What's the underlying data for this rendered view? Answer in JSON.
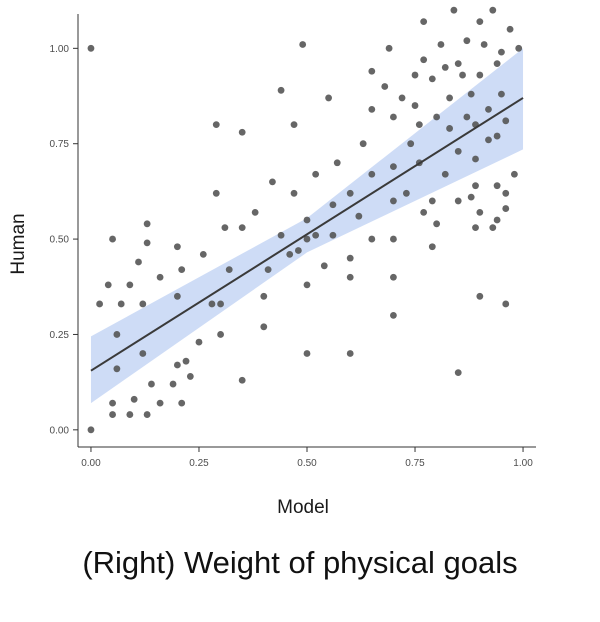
{
  "caption": "(Right) Weight of physical goals",
  "chart_data": {
    "type": "scatter",
    "xlabel": "Model",
    "ylabel": "Human",
    "xlim": [
      -0.03,
      1.03
    ],
    "ylim": [
      -0.045,
      1.09
    ],
    "xticks": [
      "0.00",
      "0.25",
      "0.50",
      "0.75",
      "1.00"
    ],
    "yticks": [
      "0.00",
      "0.25",
      "0.50",
      "0.75",
      "1.00"
    ],
    "grid": false,
    "fit_line": {
      "x": [
        0.0,
        1.0
      ],
      "y": [
        0.155,
        0.87
      ]
    },
    "confidence_band": {
      "x": [
        0.0,
        0.5,
        1.0
      ],
      "lower": [
        0.07,
        0.465,
        0.735
      ],
      "upper": [
        0.245,
        0.555,
        1.0
      ]
    },
    "colors": {
      "point": "#555555",
      "line": "#3a3a3a",
      "band": "#c5d6f4",
      "axis": "#333333"
    },
    "points": [
      [
        0.0,
        1.0
      ],
      [
        0.0,
        0.0
      ],
      [
        0.02,
        0.33
      ],
      [
        0.04,
        0.38
      ],
      [
        0.05,
        0.5
      ],
      [
        0.05,
        0.07
      ],
      [
        0.05,
        0.04
      ],
      [
        0.06,
        0.25
      ],
      [
        0.06,
        0.16
      ],
      [
        0.07,
        0.33
      ],
      [
        0.09,
        0.38
      ],
      [
        0.09,
        0.04
      ],
      [
        0.1,
        0.08
      ],
      [
        0.11,
        0.44
      ],
      [
        0.12,
        0.2
      ],
      [
        0.12,
        0.33
      ],
      [
        0.13,
        0.54
      ],
      [
        0.13,
        0.49
      ],
      [
        0.13,
        0.04
      ],
      [
        0.14,
        0.12
      ],
      [
        0.16,
        0.4
      ],
      [
        0.16,
        0.07
      ],
      [
        0.19,
        0.12
      ],
      [
        0.2,
        0.35
      ],
      [
        0.2,
        0.48
      ],
      [
        0.2,
        0.17
      ],
      [
        0.21,
        0.42
      ],
      [
        0.21,
        0.07
      ],
      [
        0.22,
        0.18
      ],
      [
        0.23,
        0.14
      ],
      [
        0.25,
        0.23
      ],
      [
        0.26,
        0.46
      ],
      [
        0.28,
        0.33
      ],
      [
        0.29,
        0.8
      ],
      [
        0.29,
        0.62
      ],
      [
        0.3,
        0.33
      ],
      [
        0.3,
        0.25
      ],
      [
        0.31,
        0.53
      ],
      [
        0.32,
        0.42
      ],
      [
        0.35,
        0.78
      ],
      [
        0.35,
        0.53
      ],
      [
        0.35,
        0.13
      ],
      [
        0.38,
        0.57
      ],
      [
        0.4,
        0.35
      ],
      [
        0.4,
        0.27
      ],
      [
        0.41,
        0.42
      ],
      [
        0.42,
        0.65
      ],
      [
        0.44,
        0.89
      ],
      [
        0.44,
        0.51
      ],
      [
        0.46,
        0.46
      ],
      [
        0.47,
        0.8
      ],
      [
        0.47,
        0.62
      ],
      [
        0.48,
        0.47
      ],
      [
        0.49,
        1.01
      ],
      [
        0.5,
        0.55
      ],
      [
        0.5,
        0.5
      ],
      [
        0.5,
        0.38
      ],
      [
        0.5,
        0.2
      ],
      [
        0.52,
        0.51
      ],
      [
        0.52,
        0.67
      ],
      [
        0.54,
        0.43
      ],
      [
        0.55,
        0.87
      ],
      [
        0.56,
        0.51
      ],
      [
        0.56,
        0.59
      ],
      [
        0.57,
        0.7
      ],
      [
        0.6,
        0.62
      ],
      [
        0.6,
        0.45
      ],
      [
        0.6,
        0.4
      ],
      [
        0.6,
        0.2
      ],
      [
        0.62,
        0.56
      ],
      [
        0.63,
        0.75
      ],
      [
        0.65,
        0.94
      ],
      [
        0.65,
        0.84
      ],
      [
        0.65,
        0.67
      ],
      [
        0.65,
        0.5
      ],
      [
        0.68,
        0.9
      ],
      [
        0.69,
        1.0
      ],
      [
        0.7,
        0.82
      ],
      [
        0.7,
        0.69
      ],
      [
        0.7,
        0.6
      ],
      [
        0.7,
        0.5
      ],
      [
        0.7,
        0.4
      ],
      [
        0.7,
        0.3
      ],
      [
        0.72,
        0.87
      ],
      [
        0.73,
        0.62
      ],
      [
        0.74,
        0.75
      ],
      [
        0.75,
        0.93
      ],
      [
        0.75,
        0.85
      ],
      [
        0.76,
        0.8
      ],
      [
        0.76,
        0.7
      ],
      [
        0.77,
        1.07
      ],
      [
        0.77,
        0.97
      ],
      [
        0.77,
        0.57
      ],
      [
        0.79,
        0.92
      ],
      [
        0.79,
        0.6
      ],
      [
        0.79,
        0.48
      ],
      [
        0.8,
        0.82
      ],
      [
        0.8,
        0.54
      ],
      [
        0.81,
        1.01
      ],
      [
        0.82,
        0.95
      ],
      [
        0.82,
        0.67
      ],
      [
        0.83,
        0.87
      ],
      [
        0.83,
        0.79
      ],
      [
        0.84,
        1.1
      ],
      [
        0.85,
        0.96
      ],
      [
        0.85,
        0.73
      ],
      [
        0.85,
        0.6
      ],
      [
        0.85,
        0.15
      ],
      [
        0.86,
        0.93
      ],
      [
        0.87,
        1.02
      ],
      [
        0.87,
        0.82
      ],
      [
        0.88,
        0.88
      ],
      [
        0.88,
        0.61
      ],
      [
        0.89,
        0.8
      ],
      [
        0.89,
        0.71
      ],
      [
        0.89,
        0.64
      ],
      [
        0.89,
        0.53
      ],
      [
        0.9,
        1.07
      ],
      [
        0.9,
        0.93
      ],
      [
        0.9,
        0.57
      ],
      [
        0.9,
        0.35
      ],
      [
        0.91,
        1.01
      ],
      [
        0.92,
        0.84
      ],
      [
        0.92,
        0.76
      ],
      [
        0.93,
        1.1
      ],
      [
        0.93,
        0.53
      ],
      [
        0.94,
        0.96
      ],
      [
        0.94,
        0.77
      ],
      [
        0.94,
        0.64
      ],
      [
        0.94,
        0.55
      ],
      [
        0.95,
        0.99
      ],
      [
        0.95,
        0.88
      ],
      [
        0.96,
        0.81
      ],
      [
        0.96,
        0.62
      ],
      [
        0.96,
        0.58
      ],
      [
        0.96,
        0.33
      ],
      [
        0.97,
        1.05
      ],
      [
        0.98,
        0.67
      ],
      [
        0.99,
        1.0
      ]
    ]
  }
}
